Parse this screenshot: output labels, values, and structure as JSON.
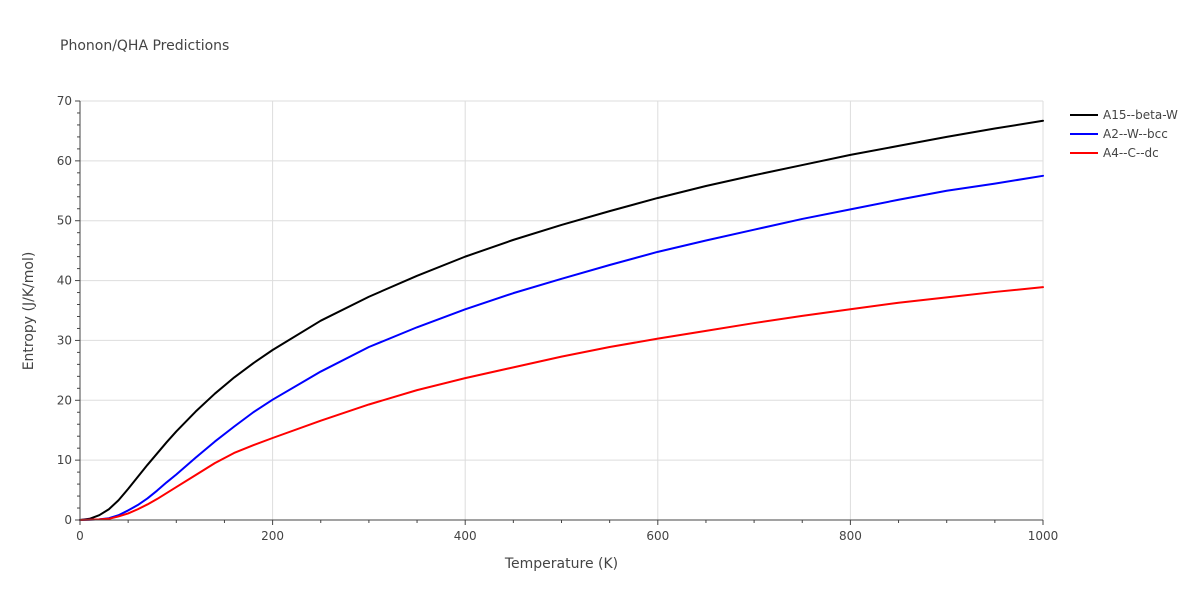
{
  "chart_data": {
    "type": "line",
    "title": "Phonon/QHA Predictions",
    "xlabel": "Temperature (K)",
    "ylabel": "Entropy (J/K/mol)",
    "xlim": [
      0,
      1000
    ],
    "ylim": [
      0,
      70
    ],
    "xticks": [
      0,
      200,
      400,
      600,
      800,
      1000
    ],
    "yticks": [
      0,
      10,
      20,
      30,
      40,
      50,
      60,
      70
    ],
    "grid": true,
    "legend_position": "top-right",
    "series": [
      {
        "name": "A15--beta-W",
        "color": "#000000",
        "x": [
          0,
          10,
          20,
          30,
          40,
          50,
          60,
          70,
          80,
          90,
          100,
          120,
          140,
          160,
          180,
          200,
          250,
          300,
          350,
          400,
          450,
          500,
          550,
          600,
          650,
          700,
          750,
          800,
          850,
          900,
          950,
          1000
        ],
        "y": [
          0,
          0.2,
          0.8,
          1.8,
          3.3,
          5.2,
          7.2,
          9.2,
          11.1,
          13.0,
          14.8,
          18.1,
          21.1,
          23.8,
          26.2,
          28.4,
          33.3,
          37.3,
          40.8,
          44.0,
          46.8,
          49.3,
          51.6,
          53.8,
          55.8,
          57.6,
          59.3,
          61.0,
          62.5,
          64.0,
          65.4,
          66.7
        ]
      },
      {
        "name": "A2--W--bcc",
        "color": "#0000ff",
        "x": [
          0,
          20,
          30,
          40,
          50,
          60,
          70,
          80,
          90,
          100,
          120,
          140,
          160,
          180,
          200,
          250,
          300,
          350,
          400,
          450,
          500,
          550,
          600,
          650,
          700,
          750,
          800,
          850,
          900,
          950,
          1000
        ],
        "y": [
          0,
          0.1,
          0.3,
          0.8,
          1.6,
          2.5,
          3.6,
          4.9,
          6.3,
          7.6,
          10.4,
          13.1,
          15.6,
          18.0,
          20.1,
          24.8,
          28.9,
          32.2,
          35.2,
          37.9,
          40.3,
          42.6,
          44.8,
          46.7,
          48.5,
          50.3,
          51.9,
          53.5,
          55.0,
          56.2,
          57.5
        ]
      },
      {
        "name": "A4--C--dc",
        "color": "#ff0000",
        "x": [
          0,
          20,
          30,
          40,
          50,
          60,
          70,
          80,
          90,
          100,
          120,
          140,
          160,
          180,
          200,
          250,
          300,
          350,
          400,
          450,
          500,
          550,
          600,
          650,
          700,
          750,
          800,
          850,
          900,
          950,
          1000
        ],
        "y": [
          0,
          0.1,
          0.2,
          0.6,
          1.1,
          1.8,
          2.6,
          3.5,
          4.5,
          5.5,
          7.5,
          9.5,
          11.2,
          12.5,
          13.7,
          16.6,
          19.3,
          21.7,
          23.7,
          25.5,
          27.3,
          28.9,
          30.3,
          31.6,
          32.9,
          34.1,
          35.2,
          36.3,
          37.2,
          38.1,
          38.9
        ]
      }
    ]
  }
}
